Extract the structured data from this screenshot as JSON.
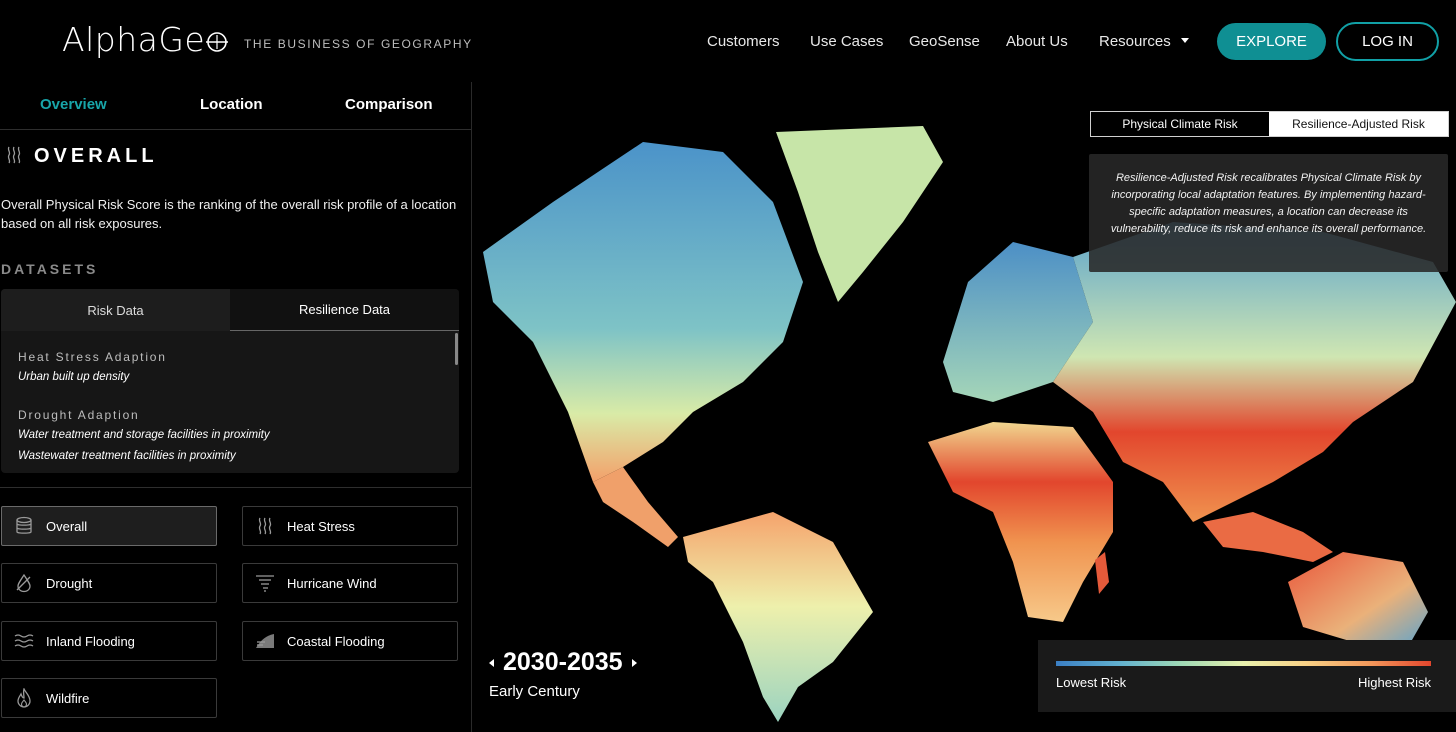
{
  "header": {
    "logo": "AlphaGe",
    "tagline": "THE BUSINESS OF GEOGRAPHY",
    "nav": [
      "Customers",
      "Use Cases",
      "GeoSense",
      "About Us",
      "Resources"
    ],
    "explore": "EXPLORE",
    "login": "LOG IN"
  },
  "sidebar": {
    "tabs": [
      "Overview",
      "Location",
      "Comparison"
    ],
    "active_tab": "Overview",
    "section_title": "OVERALL",
    "description": "Overall Physical Risk Score is the ranking of the overall risk profile of a location based on all risk exposures.",
    "datasets_label": "DATASETS",
    "data_tabs": [
      "Risk Data",
      "Resilience Data"
    ],
    "active_data_tab": "Resilience Data",
    "datasets": [
      {
        "heading": "Heat Stress Adaption",
        "items": [
          "Urban built up density"
        ]
      },
      {
        "heading": "Drought Adaption",
        "items": [
          "Water treatment and storage facilities in proximity",
          "Wastewater treatment facilities in proximity"
        ]
      }
    ],
    "categories": [
      {
        "label": "Overall",
        "icon": "database-icon",
        "active": true
      },
      {
        "label": "Heat Stress",
        "icon": "heat-waves-icon",
        "active": false
      },
      {
        "label": "Drought",
        "icon": "drop-slash-icon",
        "active": false
      },
      {
        "label": "Hurricane Wind",
        "icon": "tornado-icon",
        "active": false
      },
      {
        "label": "Inland Flooding",
        "icon": "water-waves-icon",
        "active": false
      },
      {
        "label": "Coastal Flooding",
        "icon": "coastal-wave-icon",
        "active": false
      },
      {
        "label": "Wildfire",
        "icon": "flame-icon",
        "active": false
      }
    ]
  },
  "map": {
    "toggle": [
      "Physical Climate Risk",
      "Resilience-Adjusted Risk"
    ],
    "active_toggle": "Resilience-Adjusted Risk",
    "info": "Resilience-Adjusted Risk recalibrates Physical Climate Risk by incorporating local adaptation features. By implementing hazard-specific adaptation measures, a location can decrease its vulnerability, reduce its risk and enhance its overall performance.",
    "period": "2030-2035",
    "era": "Early Century",
    "legend_low": "Lowest Risk",
    "legend_high": "Highest Risk",
    "legend_colors": [
      "#3b7fc4",
      "#61b0cf",
      "#9fd9b5",
      "#e9f1ad",
      "#f8d186",
      "#f39a5c",
      "#e2462d"
    ]
  }
}
